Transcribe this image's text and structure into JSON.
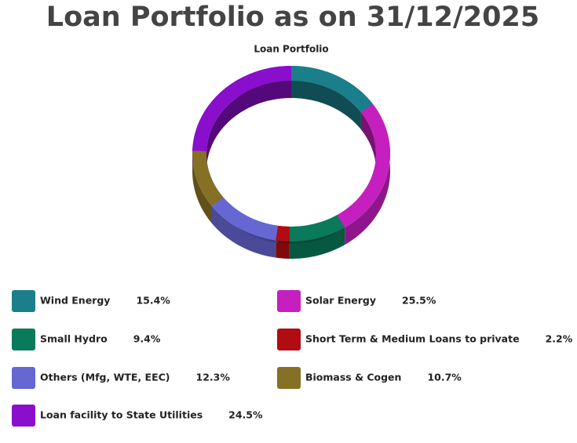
{
  "chart_data": {
    "type": "donut",
    "title": "Loan Portfolio as on 31/12/2025",
    "subtitle": "Loan Portfolio",
    "categories": [
      "Wind Energy",
      "Solar Energy",
      "Small Hydro",
      "Short Term & Medium Loans to private",
      "Others (Mfg, WTE, EEC)",
      "Biomass & Cogen",
      "Loan facility to State Utilities"
    ],
    "values": [
      15.4,
      25.5,
      9.4,
      2.2,
      12.3,
      10.7,
      24.5
    ],
    "value_labels": [
      "15.4%",
      "25.5%",
      "9.4%",
      "2.2%",
      "12.3%",
      "10.7%",
      "24.5%"
    ],
    "colors": [
      "#1a7f8a",
      "#c61fbf",
      "#0a7a5a",
      "#b00c12",
      "#6767d3",
      "#857026",
      "#8a0fcc"
    ],
    "legend": "bottom"
  }
}
